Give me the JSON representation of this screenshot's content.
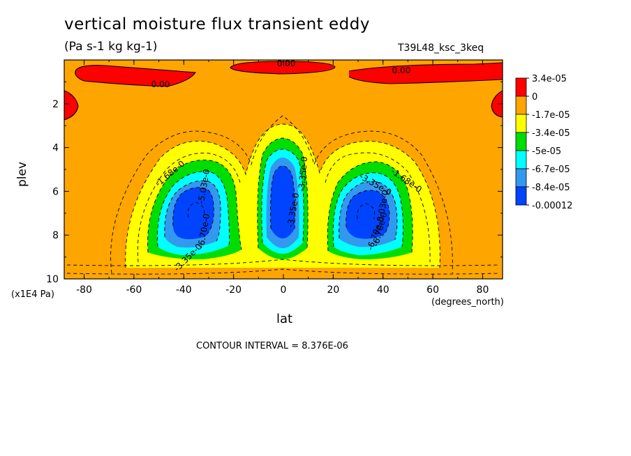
{
  "chart_data": {
    "type": "contour",
    "title": "vertical moisture flux transient eddy",
    "units": "(Pa s-1 kg kg-1)",
    "run_id": "T39L48_ksc_3keq",
    "xlabel": "lat",
    "x_units": "(degrees_north)",
    "ylabel": "plev",
    "y_units": "(x1E4 Pa)",
    "x_range": [
      -88,
      88
    ],
    "y_range": [
      0,
      10
    ],
    "y_inverted": true,
    "x_ticks": [
      -80,
      -60,
      -40,
      -20,
      0,
      20,
      40,
      60,
      80
    ],
    "y_ticks": [
      2,
      4,
      6,
      8,
      10
    ],
    "contour_interval_label": "CONTOUR INTERVAL = 8.376E-06",
    "contour_labels": [
      "0.00",
      "0.00",
      "0.00",
      "-1.68e-0",
      "-1.68e-0",
      "-3.35e-0",
      "-3.35e-0",
      "-5.03e-0",
      "-6.70e-0",
      "-6.70e-0",
      "-3.35e-0",
      "-3.35e-0",
      "-5.03e-0",
      "-6.70e-0"
    ],
    "legend": {
      "placement": "right",
      "levels": [
        "3.4e-05",
        "0",
        "-1.7e-05",
        "-3.4e-05",
        "-5e-05",
        "-6.7e-05",
        "-8.4e-05",
        "-0.00012"
      ],
      "colors": [
        "#ff0000",
        "#ffa500",
        "#ffff00",
        "#00dd00",
        "#00ffff",
        "#3399ee",
        "#0044ff"
      ]
    }
  }
}
